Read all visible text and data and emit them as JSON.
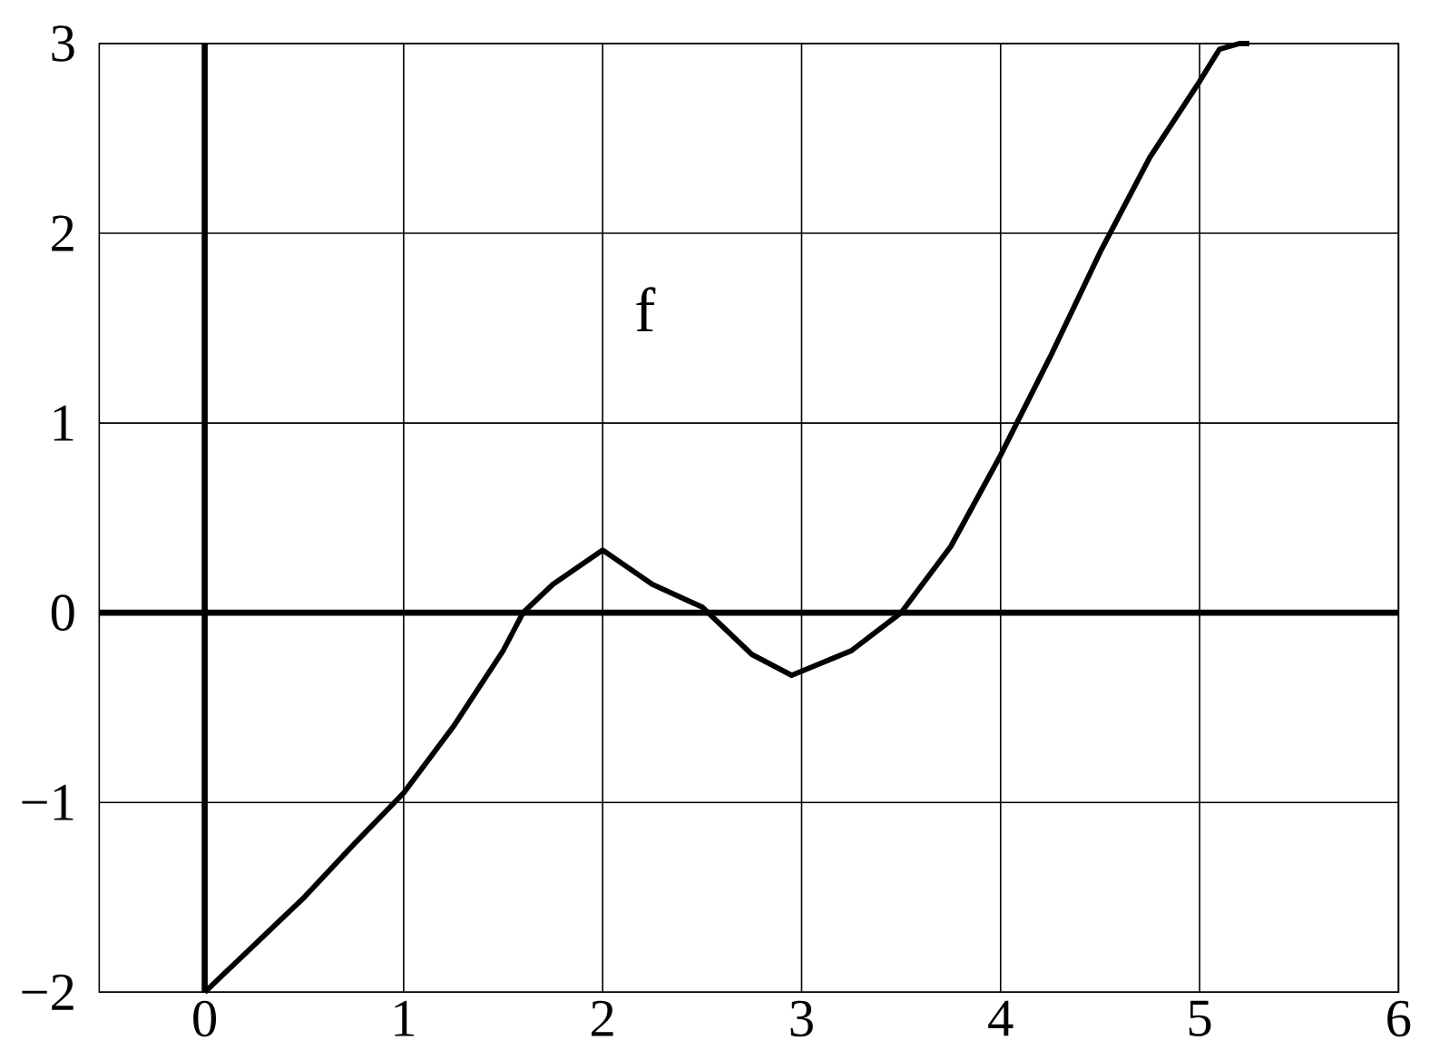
{
  "chart_data": {
    "type": "line",
    "x": [
      0,
      0.25,
      0.5,
      0.75,
      1,
      1.25,
      1.5,
      1.6,
      1.75,
      2,
      2.25,
      2.5,
      2.75,
      2.95,
      3.25,
      3.5,
      3.75,
      4,
      4.25,
      4.5,
      4.75,
      5,
      5.1,
      5.2,
      5.25
    ],
    "series": [
      {
        "color": "#000000",
        "values": [
          -2,
          -1.75,
          -1.5,
          -1.22,
          -0.95,
          -0.6,
          -0.2,
          0,
          0.15,
          0.33,
          0.15,
          0.03,
          -0.22,
          -0.33,
          -0.2,
          0,
          0.35,
          0.83,
          1.35,
          1.9,
          2.4,
          2.8,
          2.97,
          3.0,
          3.0
        ]
      }
    ],
    "xlim": [
      -0.53,
      6
    ],
    "ylim": [
      -2,
      3
    ],
    "xticks": [
      0,
      1,
      2,
      3,
      4,
      5,
      6
    ],
    "yticks": [
      {
        "value": -2,
        "label": "−2"
      },
      {
        "value": -1,
        "label": "−1"
      },
      0,
      1,
      2,
      3
    ],
    "grid": true,
    "marker": "none",
    "line_style": "solid",
    "annotations": [
      "f"
    ]
  }
}
